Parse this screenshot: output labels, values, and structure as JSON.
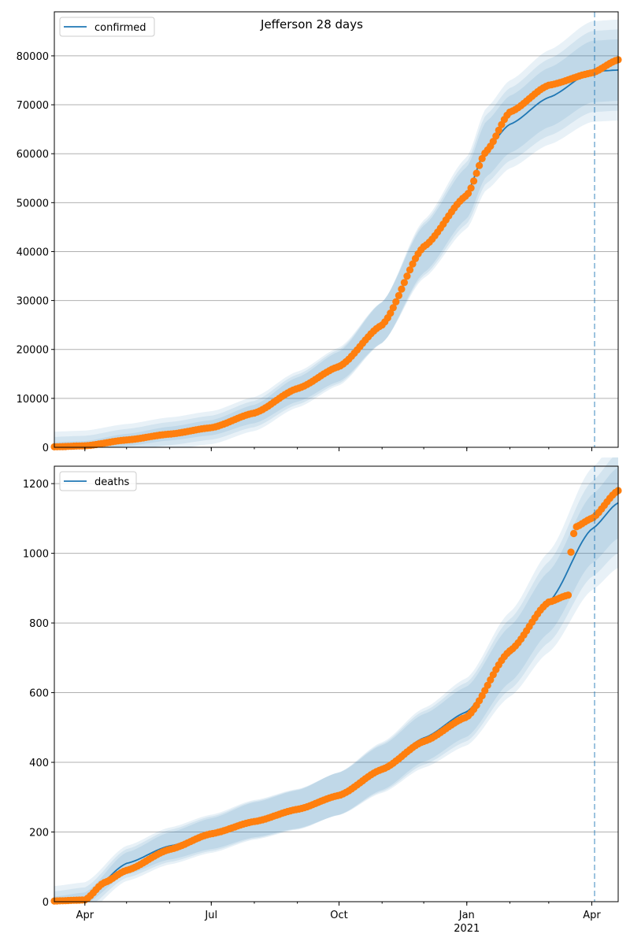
{
  "title": "Jefferson 28 days",
  "colors": {
    "model_line": "#1f77b4",
    "observed": "#ff7f0e",
    "band": "#1f77b4",
    "grid": "#b0b0b0",
    "vline": "#1f77b4"
  },
  "x_axis": {
    "start": "2020-03-10",
    "end": "2021-04-20",
    "ticks": [
      {
        "date": "2020-04-01",
        "label": "Apr"
      },
      {
        "date": "2020-07-01",
        "label": "Jul"
      },
      {
        "date": "2020-10-01",
        "label": "Oct"
      },
      {
        "date": "2021-01-01",
        "label": "Jan"
      },
      {
        "date": "2021-04-01",
        "label": "Apr"
      }
    ],
    "year_label": "2021",
    "vline_date": "2021-04-03"
  },
  "chart_data": [
    {
      "type": "line",
      "legend": "confirmed",
      "legend_position": "upper-left",
      "grid": "y",
      "ylim": [
        0,
        89000
      ],
      "yticks": [
        0,
        10000,
        20000,
        30000,
        40000,
        50000,
        60000,
        70000,
        80000
      ],
      "model": [
        [
          "2020-03-10",
          0
        ],
        [
          "2020-04-01",
          200
        ],
        [
          "2020-05-01",
          1500
        ],
        [
          "2020-06-01",
          2800
        ],
        [
          "2020-07-01",
          4000
        ],
        [
          "2020-08-01",
          6800
        ],
        [
          "2020-09-01",
          11800
        ],
        [
          "2020-10-01",
          16500
        ],
        [
          "2020-11-01",
          25500
        ],
        [
          "2020-12-01",
          40500
        ],
        [
          "2021-01-01",
          52000
        ],
        [
          "2021-01-15",
          61000
        ],
        [
          "2021-02-01",
          66000
        ],
        [
          "2021-03-01",
          71500
        ],
        [
          "2021-04-01",
          76800
        ],
        [
          "2021-04-20",
          77100
        ]
      ],
      "band_halfwidths": [
        0.04,
        0.08,
        0.12
      ],
      "observed": [
        [
          "2020-03-10",
          100
        ],
        [
          "2020-04-01",
          300
        ],
        [
          "2020-05-01",
          1500
        ],
        [
          "2020-06-01",
          2700
        ],
        [
          "2020-07-01",
          4000
        ],
        [
          "2020-08-01",
          7000
        ],
        [
          "2020-09-01",
          12000
        ],
        [
          "2020-10-01",
          16500
        ],
        [
          "2020-11-01",
          25000
        ],
        [
          "2020-12-01",
          41000
        ],
        [
          "2021-01-01",
          51500
        ],
        [
          "2021-01-15",
          60500
        ],
        [
          "2021-02-01",
          68500
        ],
        [
          "2021-03-01",
          74000
        ],
        [
          "2021-04-01",
          76500
        ],
        [
          "2021-04-20",
          79200
        ]
      ]
    },
    {
      "type": "line",
      "legend": "deaths",
      "legend_position": "upper-left",
      "grid": "y",
      "ylim": [
        0,
        1250
      ],
      "yticks": [
        0,
        200,
        400,
        600,
        800,
        1000,
        1200
      ],
      "model": [
        [
          "2020-03-10",
          0
        ],
        [
          "2020-04-01",
          10
        ],
        [
          "2020-05-01",
          110
        ],
        [
          "2020-06-01",
          160
        ],
        [
          "2020-07-01",
          195
        ],
        [
          "2020-08-01",
          235
        ],
        [
          "2020-09-01",
          265
        ],
        [
          "2020-10-01",
          310
        ],
        [
          "2020-11-01",
          385
        ],
        [
          "2020-12-01",
          470
        ],
        [
          "2021-01-01",
          545
        ],
        [
          "2021-02-01",
          710
        ],
        [
          "2021-03-01",
          860
        ],
        [
          "2021-04-01",
          1070
        ],
        [
          "2021-04-20",
          1145
        ]
      ],
      "band_halfwidths": [
        0.05,
        0.1,
        0.15
      ],
      "observed": [
        [
          "2020-03-10",
          2
        ],
        [
          "2020-04-01",
          5
        ],
        [
          "2020-04-15",
          55
        ],
        [
          "2020-05-01",
          90
        ],
        [
          "2020-06-01",
          150
        ],
        [
          "2020-07-01",
          195
        ],
        [
          "2020-08-01",
          230
        ],
        [
          "2020-09-01",
          265
        ],
        [
          "2020-10-01",
          305
        ],
        [
          "2020-11-01",
          380
        ],
        [
          "2020-12-01",
          460
        ],
        [
          "2021-01-01",
          530
        ],
        [
          "2021-02-01",
          720
        ],
        [
          "2021-03-01",
          860
        ],
        [
          "2021-03-15",
          880
        ],
        [
          "2021-03-16",
          985
        ],
        [
          "2021-03-20",
          1075
        ],
        [
          "2021-04-01",
          1100
        ],
        [
          "2021-04-20",
          1180
        ]
      ]
    }
  ]
}
